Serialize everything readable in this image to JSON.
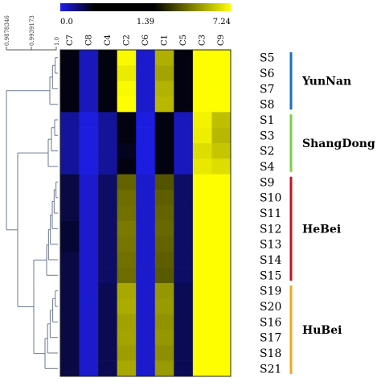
{
  "chart_data": {
    "type": "heatmap",
    "title": "",
    "color_scale": {
      "ticks": [
        "0.0",
        "1.39",
        "7.24"
      ],
      "min": 0.0,
      "mid": 1.39,
      "max": 7.24,
      "colors": [
        "#1f1ff0",
        "#000000",
        "#ffff00"
      ]
    },
    "dendrogram_axis_ticks": [
      "0.9878346",
      "0.9939173",
      "1.0"
    ],
    "columns": [
      "C7",
      "C8",
      "C4",
      "C2",
      "C6",
      "C1",
      "C5",
      "C3",
      "C9"
    ],
    "rows": [
      "S5",
      "S6",
      "S7",
      "S8",
      "S1",
      "S3",
      "S2",
      "S4",
      "S9",
      "S10",
      "S11",
      "S12",
      "S13",
      "S14",
      "S15",
      "S19",
      "S20",
      "S16",
      "S17",
      "S18",
      "S21"
    ],
    "values": [
      [
        1.3,
        0.3,
        1.3,
        7.0,
        0.2,
        4.5,
        1.3,
        7.2,
        7.2
      ],
      [
        1.3,
        0.3,
        1.3,
        6.5,
        0.2,
        4.2,
        1.3,
        7.2,
        7.2
      ],
      [
        1.3,
        0.3,
        1.3,
        7.0,
        0.2,
        4.6,
        1.3,
        7.2,
        7.2
      ],
      [
        1.3,
        0.3,
        1.3,
        7.2,
        0.2,
        4.8,
        1.3,
        7.2,
        7.2
      ],
      [
        0.5,
        0.1,
        0.5,
        1.3,
        0.1,
        1.3,
        0.3,
        6.8,
        5.0
      ],
      [
        0.5,
        0.1,
        0.5,
        1.3,
        0.1,
        1.3,
        0.3,
        6.6,
        4.8
      ],
      [
        0.5,
        0.1,
        0.5,
        1.2,
        0.1,
        1.3,
        0.3,
        6.0,
        5.2
      ],
      [
        0.5,
        0.1,
        0.5,
        1.3,
        0.1,
        1.3,
        0.3,
        6.4,
        6.0
      ],
      [
        1.0,
        0.2,
        0.8,
        2.6,
        0.2,
        2.3,
        0.8,
        7.2,
        7.2
      ],
      [
        1.0,
        0.2,
        0.8,
        2.8,
        0.2,
        2.5,
        0.8,
        7.2,
        7.2
      ],
      [
        1.0,
        0.2,
        0.8,
        2.9,
        0.2,
        2.6,
        0.8,
        7.2,
        7.2
      ],
      [
        1.1,
        0.2,
        0.8,
        3.1,
        0.2,
        2.7,
        0.8,
        7.2,
        7.2
      ],
      [
        1.1,
        0.2,
        0.8,
        3.0,
        0.2,
        2.6,
        0.8,
        7.2,
        7.2
      ],
      [
        1.0,
        0.2,
        0.8,
        2.9,
        0.2,
        2.5,
        0.8,
        7.2,
        7.2
      ],
      [
        1.0,
        0.2,
        0.8,
        2.8,
        0.2,
        2.4,
        0.8,
        7.2,
        7.2
      ],
      [
        1.0,
        0.2,
        0.9,
        4.3,
        0.2,
        3.8,
        0.9,
        7.2,
        7.2
      ],
      [
        1.0,
        0.2,
        0.9,
        4.4,
        0.2,
        3.9,
        0.9,
        7.2,
        7.2
      ],
      [
        1.0,
        0.2,
        0.9,
        4.1,
        0.2,
        3.7,
        0.9,
        7.2,
        7.2
      ],
      [
        1.0,
        0.2,
        0.9,
        4.2,
        0.2,
        3.8,
        0.9,
        7.2,
        7.2
      ],
      [
        1.0,
        0.2,
        0.9,
        4.0,
        0.2,
        3.6,
        0.9,
        7.2,
        7.2
      ],
      [
        1.0,
        0.2,
        0.9,
        4.3,
        0.2,
        3.9,
        0.9,
        7.2,
        7.2
      ]
    ],
    "groups": [
      {
        "name": "YunNan",
        "rows": [
          "S5",
          "S6",
          "S7",
          "S8"
        ],
        "color": "#1a6fc2"
      },
      {
        "name": "ShangDong",
        "rows": [
          "S1",
          "S3",
          "S2",
          "S4"
        ],
        "color": "#7ccd4a"
      },
      {
        "name": "HeBei",
        "rows": [
          "S9",
          "S10",
          "S11",
          "S12",
          "S13",
          "S14",
          "S15"
        ],
        "color": "#c0141f"
      },
      {
        "name": "HuBei",
        "rows": [
          "S19",
          "S20",
          "S16",
          "S17",
          "S18",
          "S21"
        ],
        "color": "#f2a623"
      }
    ],
    "grid": false,
    "legend": "top"
  }
}
